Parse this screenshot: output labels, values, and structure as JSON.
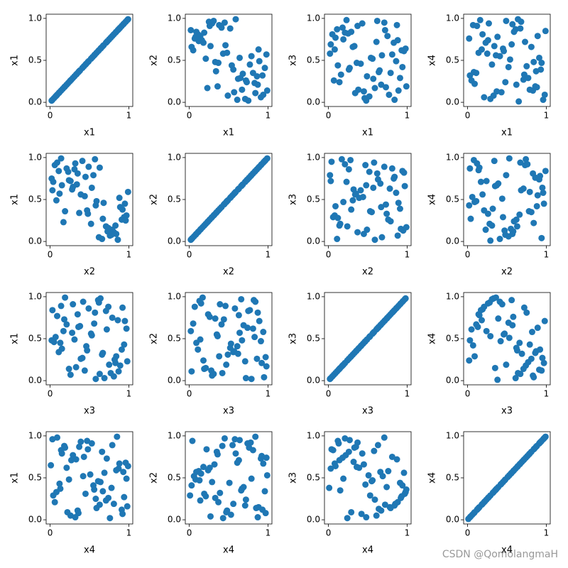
{
  "chart_data": {
    "type": "scatter-matrix",
    "color": "#1f77b4",
    "xlim": [
      -0.05,
      1.05
    ],
    "ylim": [
      -0.05,
      1.05
    ],
    "xticks": [
      0,
      1
    ],
    "yticks": [
      {
        "value": 0,
        "label": "0.0"
      },
      {
        "value": 0.5,
        "label": "0.5"
      },
      {
        "value": 1,
        "label": "1.0"
      }
    ],
    "variables": [
      {
        "name": "x1",
        "values": [
          0.12,
          0.87,
          0.45,
          0.33,
          0.91,
          0.05,
          0.68,
          0.52,
          0.23,
          0.79,
          0.61,
          0.14,
          0.96,
          0.38,
          0.72,
          0.27,
          0.84,
          0.09,
          0.56,
          0.43,
          0.99,
          0.31,
          0.65,
          0.18,
          0.77,
          0.02,
          0.49,
          0.88,
          0.36,
          0.59,
          0.21,
          0.93,
          0.07,
          0.71,
          0.46,
          0.83,
          0.26,
          0.54,
          0.11,
          0.67,
          0.98,
          0.34,
          0.75,
          0.16,
          0.62,
          0.41,
          0.89,
          0.03,
          0.57,
          0.29,
          0.81,
          0.48,
          0.19,
          0.94,
          0.37,
          0.73,
          0.08,
          0.64,
          0.25,
          0.86
        ]
      },
      {
        "name": "x2",
        "values": [
          0.73,
          0.21,
          0.95,
          0.48,
          0.06,
          0.62,
          0.34,
          0.88,
          0.17,
          0.55,
          0.03,
          0.79,
          0.41,
          0.92,
          0.26,
          0.67,
          0.11,
          0.84,
          0.39,
          0.58,
          0.14,
          0.97,
          0.29,
          0.71,
          0.45,
          0.86,
          0.08,
          0.63,
          0.19,
          0.99,
          0.52,
          0.32,
          0.76,
          0.04,
          0.68,
          0.23,
          0.91,
          0.44,
          0.81,
          0.15,
          0.57,
          0.37,
          0.02,
          0.74,
          0.28,
          0.89,
          0.49,
          0.66,
          0.12,
          0.94,
          0.35,
          0.59,
          0.83,
          0.09,
          0.47,
          0.24,
          0.78,
          0.53,
          0.96,
          0.31
        ]
      },
      {
        "name": "x3",
        "values": [
          0.44,
          0.92,
          0.13,
          0.67,
          0.29,
          0.81,
          0.56,
          0.07,
          0.98,
          0.35,
          0.72,
          0.24,
          0.61,
          0.15,
          0.86,
          0.41,
          0.03,
          0.77,
          0.52,
          0.94,
          0.19,
          0.66,
          0.38,
          0.89,
          0.09,
          0.58,
          0.31,
          0.74,
          0.47,
          0.17,
          0.83,
          0.62,
          0.26,
          0.95,
          0.05,
          0.71,
          0.39,
          0.53,
          0.87,
          0.21,
          0.64,
          0.11,
          0.79,
          0.33,
          0.97,
          0.46,
          0.14,
          0.69,
          0.28,
          0.84,
          0.57,
          0.02,
          0.75,
          0.42,
          0.91,
          0.18,
          0.63,
          0.36,
          0.82,
          0.49
        ]
      },
      {
        "name": "x4",
        "values": [
          0.91,
          0.37,
          0.64,
          0.08,
          0.53,
          0.26,
          0.96,
          0.42,
          0.71,
          0.15,
          0.87,
          0.59,
          0.03,
          0.78,
          0.33,
          0.94,
          0.48,
          0.22,
          0.69,
          0.12,
          0.85,
          0.45,
          0.01,
          0.63,
          0.29,
          0.76,
          0.97,
          0.18,
          0.56,
          0.84,
          0.06,
          0.39,
          0.92,
          0.27,
          0.61,
          0.14,
          0.74,
          0.51,
          0.35,
          0.88,
          0.09,
          0.67,
          0.43,
          0.98,
          0.21,
          0.55,
          0.79,
          0.32,
          0.93,
          0.04,
          0.66,
          0.24,
          0.81,
          0.47,
          0.13,
          0.72,
          0.36,
          0.99,
          0.58,
          0.19
        ]
      }
    ]
  },
  "watermark": "CSDN @QomolangmaH"
}
